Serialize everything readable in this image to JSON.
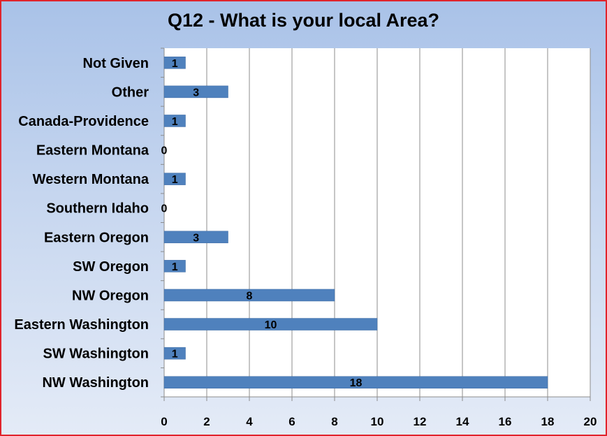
{
  "chart_data": {
    "type": "bar",
    "orientation": "horizontal",
    "title": "Q12 - What is your local Area?",
    "categories": [
      "Not Given",
      "Other",
      "Canada-Providence",
      "Eastern Montana",
      "Western Montana",
      "Southern Idaho",
      "Eastern Oregon",
      "SW Oregon",
      "NW Oregon",
      "Eastern Washington",
      "SW Washington",
      "NW Washington"
    ],
    "values": [
      1,
      3,
      1,
      0,
      1,
      0,
      3,
      1,
      8,
      10,
      1,
      18
    ],
    "xlim": [
      0,
      20
    ],
    "xticks": [
      0,
      2,
      4,
      6,
      8,
      10,
      12,
      14,
      16,
      18,
      20
    ],
    "grid": "vertical",
    "legend": "none",
    "bar_color": "#4f81bd"
  }
}
